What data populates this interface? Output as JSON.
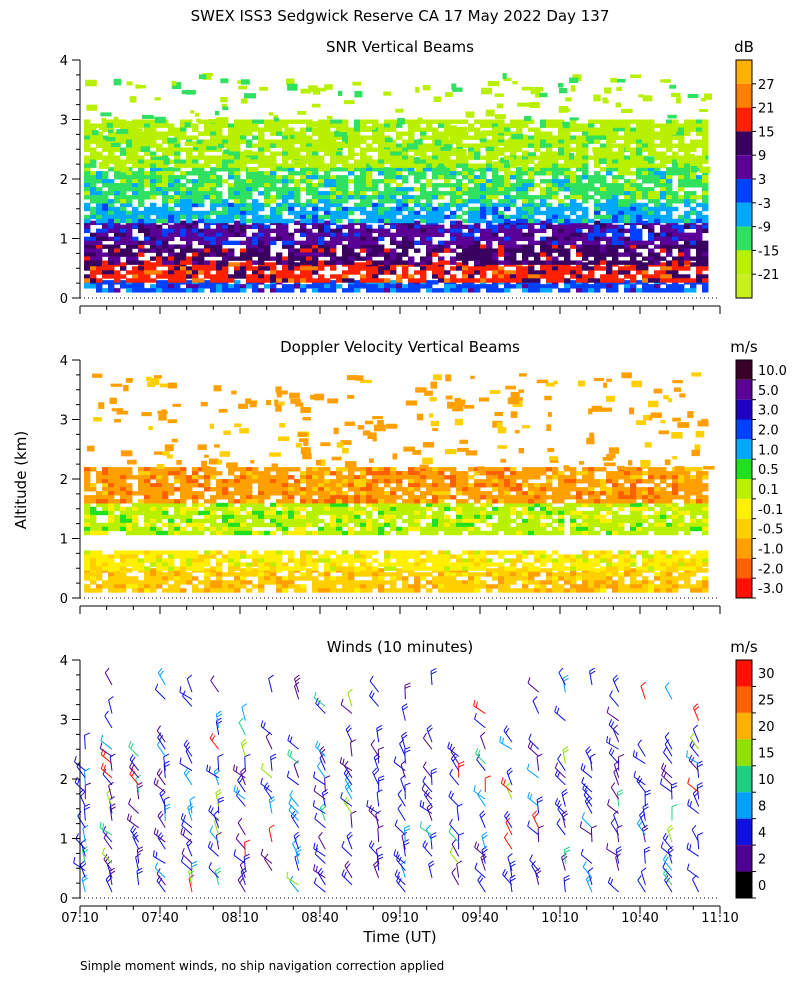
{
  "figure": {
    "title": "SWEX ISS3 Sedgwick Reserve CA  17 May 2022 Day 137",
    "ylabel": "Altitude (km)",
    "xlabel": "Time (UT)",
    "footnote": "Simple moment winds, no ship navigation correction applied"
  },
  "chart_data": [
    {
      "type": "heatmap",
      "title": "SNR Vertical Beams",
      "unit": "dB",
      "x_ticks": [
        "07:10",
        "07:40",
        "08:10",
        "08:40",
        "09:10",
        "09:40",
        "10:10",
        "10:40",
        "11:10"
      ],
      "y_ticks": [
        "0",
        "1",
        "2",
        "3",
        "4"
      ],
      "xlim_utc": [
        "07:10",
        "11:10"
      ],
      "ylim_km": [
        0,
        4
      ],
      "colorbar": {
        "labels": [
          "27",
          "21",
          "15",
          "9",
          "3",
          "-3",
          "-9",
          "-15",
          "-21"
        ],
        "colors": [
          "#ffb000",
          "#ff7f00",
          "#ff2000",
          "#3a0060",
          "#5a0096",
          "#0040ff",
          "#00a8ff",
          "#30e060",
          "#b8f000"
        ],
        "bottom_color": "#c8f020"
      },
      "bands_km": [
        {
          "from": 0.1,
          "to": 0.3,
          "class": "-3"
        },
        {
          "from": 0.3,
          "to": 0.6,
          "class": "15"
        },
        {
          "from": 0.6,
          "to": 0.9,
          "class": "9"
        },
        {
          "from": 0.9,
          "to": 1.3,
          "class": "3"
        },
        {
          "from": 1.3,
          "to": 1.6,
          "class": "-9"
        },
        {
          "from": 1.6,
          "to": 2.2,
          "class": "-15"
        },
        {
          "from": 2.2,
          "to": 3.0,
          "class": "-21"
        }
      ]
    },
    {
      "type": "heatmap",
      "title": "Doppler Velocity Vertical Beams",
      "unit": "m/s",
      "x_ticks": [
        "07:10",
        "07:40",
        "08:10",
        "08:40",
        "09:10",
        "09:40",
        "10:10",
        "10:40",
        "11:10"
      ],
      "y_ticks": [
        "0",
        "1",
        "2",
        "3",
        "4"
      ],
      "xlim_utc": [
        "07:10",
        "11:10"
      ],
      "ylim_km": [
        0,
        4
      ],
      "colorbar": {
        "labels": [
          "10.0",
          "5.0",
          "3.0",
          "2.0",
          "1.0",
          "0.5",
          "0.1",
          "-0.1",
          "-0.5",
          "-1.0",
          "-2.0",
          "-3.0"
        ],
        "colors": [
          "#3a0028",
          "#5a0096",
          "#2000c0",
          "#0040ff",
          "#00a8ff",
          "#20e020",
          "#b8f000",
          "#fff000",
          "#ffd000",
          "#ffa000",
          "#ff6000",
          "#ff1000"
        ]
      },
      "bands_km": [
        {
          "from": 0.1,
          "to": 0.5,
          "class": "-0.5"
        },
        {
          "from": 0.5,
          "to": 0.8,
          "class": "-0.1"
        },
        {
          "from": 1.1,
          "to": 1.6,
          "class": "0.1"
        },
        {
          "from": 1.6,
          "to": 2.2,
          "class": "-1.0"
        }
      ]
    },
    {
      "type": "wind_barbs",
      "title": "Winds (10 minutes)",
      "unit": "m/s",
      "x_ticks": [
        "07:10",
        "07:40",
        "08:10",
        "08:40",
        "09:10",
        "09:40",
        "10:10",
        "10:40",
        "11:10"
      ],
      "y_ticks": [
        "0",
        "1",
        "2",
        "3",
        "4"
      ],
      "xlim_utc": [
        "07:10",
        "11:10"
      ],
      "ylim_km": [
        0,
        4
      ],
      "colorbar": {
        "labels": [
          "30",
          "25",
          "20",
          "15",
          "10",
          "8",
          "4",
          "2",
          "0"
        ],
        "colors": [
          "#ff1000",
          "#ff6000",
          "#ffb000",
          "#90e000",
          "#20d080",
          "#00a0ff",
          "#1010e0",
          "#500090",
          "#000000"
        ]
      }
    }
  ]
}
